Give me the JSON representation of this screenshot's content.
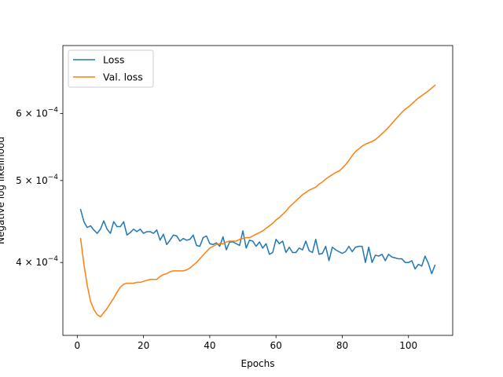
{
  "chart_data": {
    "type": "line",
    "title": "",
    "xlabel": "Epochs",
    "ylabel": "Negative log likelihood",
    "xlim": [
      -4.35,
      113.35
    ],
    "ylim": [
      0.000328,
      0.000722
    ],
    "y_scale": "log",
    "grid": false,
    "legend_position": "top-left",
    "x_ticks": [
      {
        "value": 0,
        "label": "0"
      },
      {
        "value": 20,
        "label": "20"
      },
      {
        "value": 40,
        "label": "40"
      },
      {
        "value": 60,
        "label": "60"
      },
      {
        "value": 80,
        "label": "80"
      },
      {
        "value": 100,
        "label": "100"
      }
    ],
    "y_ticks": [
      {
        "value": 0.0004,
        "label": "4 × 10^−4",
        "mantissa": "4 × 10",
        "exp": "−4"
      },
      {
        "value": 0.0005,
        "label": "5 × 10^−4",
        "mantissa": "5 × 10",
        "exp": "−4"
      },
      {
        "value": 0.0006,
        "label": "6 × 10^−4",
        "mantissa": "6 × 10",
        "exp": "−4"
      }
    ],
    "x": [
      1,
      2,
      3,
      4,
      5,
      6,
      7,
      8,
      9,
      10,
      11,
      12,
      13,
      14,
      15,
      16,
      17,
      18,
      19,
      20,
      21,
      22,
      23,
      24,
      25,
      26,
      27,
      28,
      29,
      30,
      31,
      32,
      33,
      34,
      35,
      36,
      37,
      38,
      39,
      40,
      41,
      42,
      43,
      44,
      45,
      46,
      47,
      48,
      49,
      50,
      51,
      52,
      53,
      54,
      55,
      56,
      57,
      58,
      59,
      60,
      61,
      62,
      63,
      64,
      65,
      66,
      67,
      68,
      69,
      70,
      71,
      72,
      73,
      74,
      75,
      76,
      77,
      78,
      79,
      80,
      81,
      82,
      83,
      84,
      85,
      86,
      87,
      88,
      89,
      90,
      91,
      92,
      93,
      94,
      95,
      96,
      97,
      98,
      99,
      100,
      101,
      102,
      103,
      104,
      105,
      106,
      107,
      108
    ],
    "series": [
      {
        "name": "Loss",
        "color": "#1f77b4",
        "values": [
          0.000462,
          0.000447,
          0.00044,
          0.000442,
          0.000437,
          0.000433,
          0.000438,
          0.000448,
          0.000438,
          0.000433,
          0.000447,
          0.000441,
          0.000441,
          0.000447,
          0.000431,
          0.000434,
          0.000438,
          0.000435,
          0.000438,
          0.000433,
          0.000435,
          0.000435,
          0.000433,
          0.000437,
          0.000425,
          0.000432,
          0.00042,
          0.000425,
          0.000431,
          0.00043,
          0.000424,
          0.000427,
          0.000425,
          0.000426,
          0.000431,
          0.000419,
          0.000418,
          0.000428,
          0.00043,
          0.000421,
          0.00042,
          0.000422,
          0.000418,
          0.000429,
          0.000414,
          0.000423,
          0.000423,
          0.000421,
          0.000419,
          0.000436,
          0.000416,
          0.000425,
          0.000424,
          0.000418,
          0.000423,
          0.000416,
          0.000421,
          0.000409,
          0.000411,
          0.000426,
          0.000421,
          0.000424,
          0.000411,
          0.000417,
          0.000411,
          0.000411,
          0.000416,
          0.000414,
          0.000424,
          0.000413,
          0.000411,
          0.000426,
          0.000409,
          0.00041,
          0.000418,
          0.000402,
          0.000417,
          0.000414,
          0.000412,
          0.00041,
          0.000412,
          0.000418,
          0.000412,
          0.000417,
          0.000418,
          0.000418,
          0.0004,
          0.000417,
          0.0004,
          0.000408,
          0.000407,
          0.000409,
          0.000402,
          0.000409,
          0.000406,
          0.000405,
          0.000404,
          0.000404,
          0.0004,
          0.0004,
          0.000402,
          0.000393,
          0.000398,
          0.000396,
          0.000407,
          0.000399,
          0.000388,
          0.000397
        ]
      },
      {
        "name": "Val. loss",
        "color": "#ff7f0e",
        "values": [
          0.000427,
          0.000398,
          0.000376,
          0.00036,
          0.000352,
          0.000347,
          0.000345,
          0.000349,
          0.000353,
          0.000358,
          0.000363,
          0.000369,
          0.000374,
          0.000377,
          0.000378,
          0.000378,
          0.000378,
          0.000379,
          0.000379,
          0.00038,
          0.000381,
          0.000382,
          0.000382,
          0.000382,
          0.000385,
          0.000387,
          0.000388,
          0.00039,
          0.000391,
          0.000391,
          0.000391,
          0.000391,
          0.000392,
          0.000394,
          0.000397,
          0.0004,
          0.000404,
          0.000408,
          0.000412,
          0.000416,
          0.000418,
          0.00042,
          0.000421,
          0.000421,
          0.000423,
          0.000424,
          0.000424,
          0.000424,
          0.000426,
          0.000427,
          0.000428,
          0.000428,
          0.00043,
          0.000432,
          0.000434,
          0.000436,
          0.000439,
          0.000442,
          0.000445,
          0.000449,
          0.000452,
          0.000456,
          0.00046,
          0.000465,
          0.000469,
          0.000473,
          0.000477,
          0.000481,
          0.000484,
          0.000487,
          0.000489,
          0.000491,
          0.000495,
          0.000498,
          0.000502,
          0.000505,
          0.000508,
          0.000511,
          0.000513,
          0.000517,
          0.000522,
          0.000528,
          0.000535,
          0.000541,
          0.000545,
          0.000549,
          0.000552,
          0.000554,
          0.000556,
          0.000559,
          0.000563,
          0.000568,
          0.000573,
          0.000578,
          0.000584,
          0.00059,
          0.000596,
          0.000602,
          0.000607,
          0.000611,
          0.000616,
          0.000621,
          0.000626,
          0.00063,
          0.000634,
          0.000638,
          0.000643,
          0.000648
        ]
      }
    ]
  }
}
